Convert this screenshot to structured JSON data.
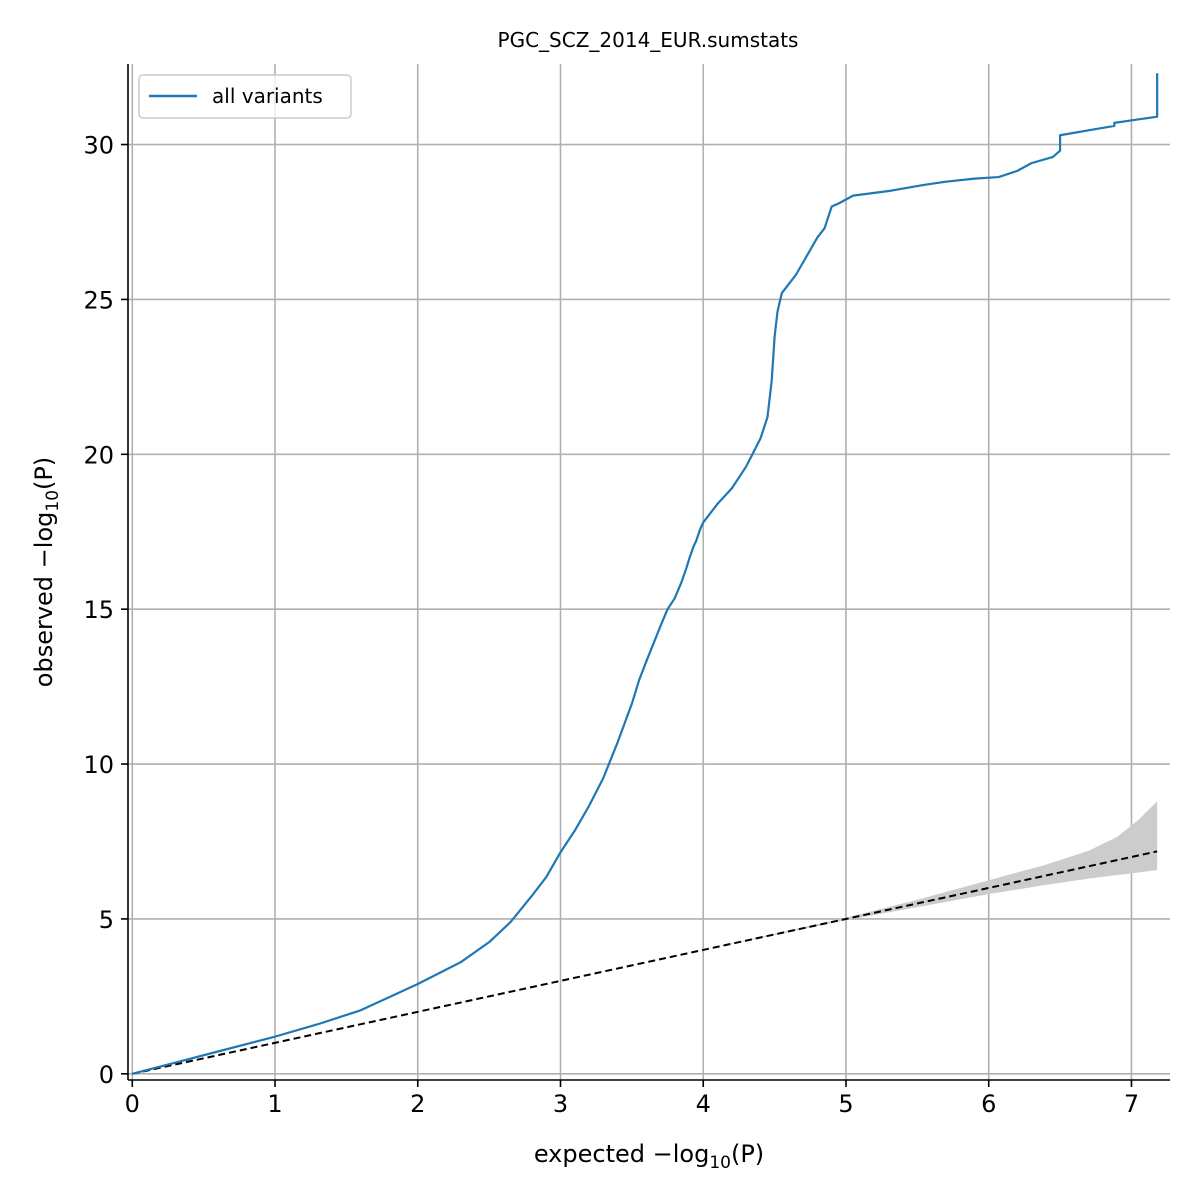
{
  "chart_data": {
    "type": "line",
    "title": "PGC_SCZ_2014_EUR.sumstats",
    "xlabel": {
      "prefix": "expected −log",
      "sub": "10",
      "suffix": "(P)"
    },
    "ylabel": {
      "prefix": "observed −log",
      "sub": "10",
      "suffix": "(P)"
    },
    "xlim": [
      -0.03,
      7.27
    ],
    "ylim": [
      -0.2,
      32.6
    ],
    "x_ticks": [
      0,
      1,
      2,
      3,
      4,
      5,
      6,
      7
    ],
    "y_ticks": [
      0,
      5,
      10,
      15,
      20,
      25,
      30
    ],
    "x_tick_labels": [
      "0",
      "1",
      "2",
      "3",
      "4",
      "5",
      "6",
      "7"
    ],
    "y_tick_labels": [
      "0",
      "5",
      "10",
      "15",
      "20",
      "25",
      "30"
    ],
    "grid": true,
    "legend": {
      "position": "top-left",
      "entries": [
        "all variants"
      ]
    },
    "series": [
      {
        "name": "all variants",
        "color": "#1f77b4",
        "x": [
          0,
          0.3,
          0.6,
          1.0,
          1.3,
          1.6,
          2.0,
          2.3,
          2.5,
          2.65,
          2.8,
          2.9,
          3.0,
          3.1,
          3.2,
          3.3,
          3.4,
          3.5,
          3.55,
          3.6,
          3.7,
          3.75,
          3.8,
          3.85,
          3.88,
          3.9,
          3.93,
          3.95,
          3.98,
          4.0,
          4.05,
          4.1,
          4.2,
          4.3,
          4.35,
          4.4,
          4.45,
          4.48,
          4.5,
          4.52,
          4.55,
          4.6,
          4.65,
          4.7,
          4.75,
          4.8,
          4.85,
          4.9,
          4.95,
          5.05,
          5.3,
          5.55,
          5.7,
          5.9,
          6.07,
          6.2,
          6.3,
          6.45,
          6.5,
          6.5,
          6.75,
          6.88,
          6.88,
          7.18,
          7.18
        ],
        "y": [
          0,
          0.36,
          0.72,
          1.2,
          1.6,
          2.05,
          2.9,
          3.6,
          4.25,
          4.9,
          5.75,
          6.35,
          7.15,
          7.85,
          8.65,
          9.55,
          10.7,
          11.95,
          12.7,
          13.3,
          14.45,
          15.0,
          15.35,
          15.9,
          16.3,
          16.6,
          17.0,
          17.2,
          17.6,
          17.8,
          18.1,
          18.4,
          18.9,
          19.6,
          20.05,
          20.5,
          21.2,
          22.4,
          23.8,
          24.6,
          25.2,
          25.5,
          25.8,
          26.2,
          26.6,
          27.0,
          27.3,
          28.0,
          28.1,
          28.35,
          28.5,
          28.7,
          28.8,
          28.9,
          28.95,
          29.15,
          29.4,
          29.6,
          29.8,
          30.3,
          30.5,
          30.6,
          30.7,
          30.9,
          32.3
        ]
      }
    ],
    "reference_line": {
      "label": "",
      "color": "#000000",
      "style": "dashed",
      "x": [
        0,
        7.18
      ],
      "y": [
        0,
        7.18
      ]
    },
    "confidence_band": {
      "color": "#cccccc",
      "x": [
        0,
        1,
        2,
        3,
        4,
        4.5,
        5,
        5.5,
        6,
        6.4,
        6.7,
        6.9,
        7.05,
        7.18
      ],
      "lower": [
        0,
        1,
        2,
        3,
        4,
        4.48,
        4.96,
        5.38,
        5.8,
        6.1,
        6.3,
        6.42,
        6.5,
        6.58
      ],
      "upper": [
        0,
        1,
        2,
        3,
        4,
        4.52,
        5.04,
        5.62,
        6.25,
        6.75,
        7.2,
        7.65,
        8.2,
        8.8
      ]
    }
  }
}
